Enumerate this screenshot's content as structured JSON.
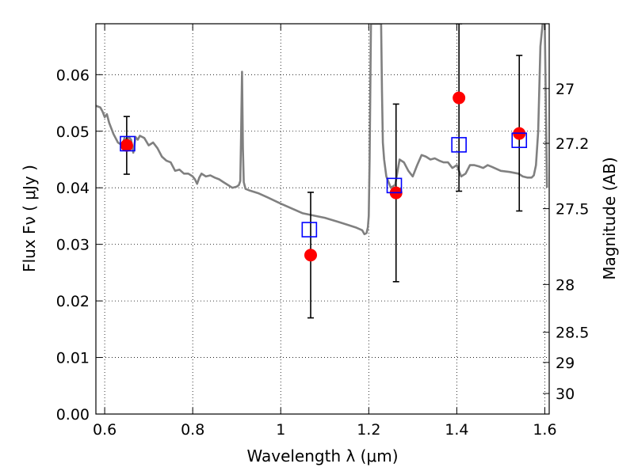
{
  "chart_data": {
    "type": "scatter",
    "title": "",
    "xlabel": "Wavelength  λ (μm)",
    "ylabel": "Flux  Fν  ( μJy )",
    "ylabel_right": "Magnitude (AB)",
    "xlim": [
      0.58,
      1.61
    ],
    "ylim": [
      0.0,
      0.069
    ],
    "grid": true,
    "x_ticks": [
      {
        "value": 0.6,
        "label": "0.6"
      },
      {
        "value": 0.8,
        "label": "0.8"
      },
      {
        "value": 1.0,
        "label": "1"
      },
      {
        "value": 1.2,
        "label": "1.2"
      },
      {
        "value": 1.4,
        "label": "1.4"
      },
      {
        "value": 1.6,
        "label": "1.6"
      }
    ],
    "y_ticks": [
      {
        "value": 0.0,
        "label": "0.00"
      },
      {
        "value": 0.01,
        "label": "0.01"
      },
      {
        "value": 0.02,
        "label": "0.02"
      },
      {
        "value": 0.03,
        "label": "0.03"
      },
      {
        "value": 0.04,
        "label": "0.04"
      },
      {
        "value": 0.05,
        "label": "0.05"
      },
      {
        "value": 0.06,
        "label": "0.06"
      }
    ],
    "right_ticks": [
      {
        "mag": 27.0,
        "label": "27"
      },
      {
        "mag": 27.2,
        "label": "27.2"
      },
      {
        "mag": 27.5,
        "label": "27.5"
      },
      {
        "mag": 28.0,
        "label": "28"
      },
      {
        "mag": 28.5,
        "label": "28.5"
      },
      {
        "mag": 29.0,
        "label": "29"
      },
      {
        "mag": 30.0,
        "label": "30"
      }
    ],
    "model_spectrum": {
      "color": "#808080",
      "x": [
        0.58,
        0.59,
        0.595,
        0.6,
        0.605,
        0.61,
        0.62,
        0.63,
        0.64,
        0.645,
        0.65,
        0.655,
        0.66,
        0.665,
        0.67,
        0.675,
        0.68,
        0.69,
        0.7,
        0.71,
        0.72,
        0.73,
        0.74,
        0.75,
        0.76,
        0.77,
        0.78,
        0.79,
        0.8,
        0.805,
        0.81,
        0.815,
        0.82,
        0.83,
        0.84,
        0.85,
        0.86,
        0.87,
        0.88,
        0.89,
        0.9,
        0.905,
        0.908,
        0.91,
        0.912,
        0.914,
        0.916,
        0.92,
        0.93,
        0.95,
        0.97,
        1.0,
        1.05,
        1.08,
        1.1,
        1.13,
        1.15,
        1.17,
        1.185,
        1.19,
        1.195,
        1.198,
        1.2,
        1.202,
        1.205,
        1.21,
        1.215,
        1.225,
        1.228,
        1.23,
        1.232,
        1.235,
        1.24,
        1.25,
        1.26,
        1.27,
        1.28,
        1.29,
        1.3,
        1.31,
        1.32,
        1.33,
        1.34,
        1.35,
        1.36,
        1.37,
        1.38,
        1.39,
        1.4,
        1.41,
        1.42,
        1.43,
        1.44,
        1.45,
        1.46,
        1.47,
        1.48,
        1.5,
        1.52,
        1.54,
        1.55,
        1.56,
        1.57,
        1.575,
        1.58,
        1.585,
        1.59,
        1.595,
        1.6,
        1.605
      ],
      "y": [
        0.0545,
        0.0542,
        0.0535,
        0.0525,
        0.053,
        0.0515,
        0.0495,
        0.048,
        0.0475,
        0.0488,
        0.0482,
        0.049,
        0.0485,
        0.0462,
        0.049,
        0.0485,
        0.0492,
        0.0488,
        0.0475,
        0.048,
        0.047,
        0.0455,
        0.0448,
        0.0445,
        0.043,
        0.0432,
        0.0425,
        0.0425,
        0.042,
        0.0415,
        0.0407,
        0.0418,
        0.0425,
        0.042,
        0.0422,
        0.0418,
        0.0415,
        0.041,
        0.0405,
        0.04,
        0.0402,
        0.0405,
        0.0412,
        0.05,
        0.0605,
        0.047,
        0.041,
        0.0398,
        0.0395,
        0.039,
        0.0383,
        0.0372,
        0.0355,
        0.035,
        0.0347,
        0.034,
        0.0335,
        0.033,
        0.0325,
        0.0318,
        0.032,
        0.033,
        0.035,
        0.045,
        0.069,
        0.069,
        0.069,
        0.069,
        0.069,
        0.057,
        0.048,
        0.045,
        0.042,
        0.04,
        0.0405,
        0.045,
        0.0445,
        0.043,
        0.042,
        0.044,
        0.0458,
        0.0455,
        0.045,
        0.0452,
        0.0448,
        0.0445,
        0.0445,
        0.0435,
        0.044,
        0.042,
        0.0425,
        0.044,
        0.044,
        0.0438,
        0.0435,
        0.044,
        0.0437,
        0.043,
        0.0428,
        0.0425,
        0.042,
        0.0418,
        0.0418,
        0.0422,
        0.044,
        0.05,
        0.065,
        0.069,
        0.069,
        0.04
      ]
    },
    "observed": {
      "color": "#ff0000",
      "x": [
        0.65,
        1.068,
        1.262,
        1.405,
        1.542
      ],
      "y": [
        0.0475,
        0.0281,
        0.0391,
        0.0559,
        0.0496
      ],
      "err_low": [
        0.0424,
        0.017,
        0.0234,
        0.0394,
        0.0359
      ],
      "err_high": [
        0.0526,
        0.0392,
        0.0548,
        0.069,
        0.0634
      ]
    },
    "model_photometry": {
      "color": "#0000ff",
      "x": [
        0.652,
        1.065,
        1.258,
        1.405,
        1.542
      ],
      "y": [
        0.0478,
        0.0326,
        0.0404,
        0.0476,
        0.0484
      ]
    }
  }
}
